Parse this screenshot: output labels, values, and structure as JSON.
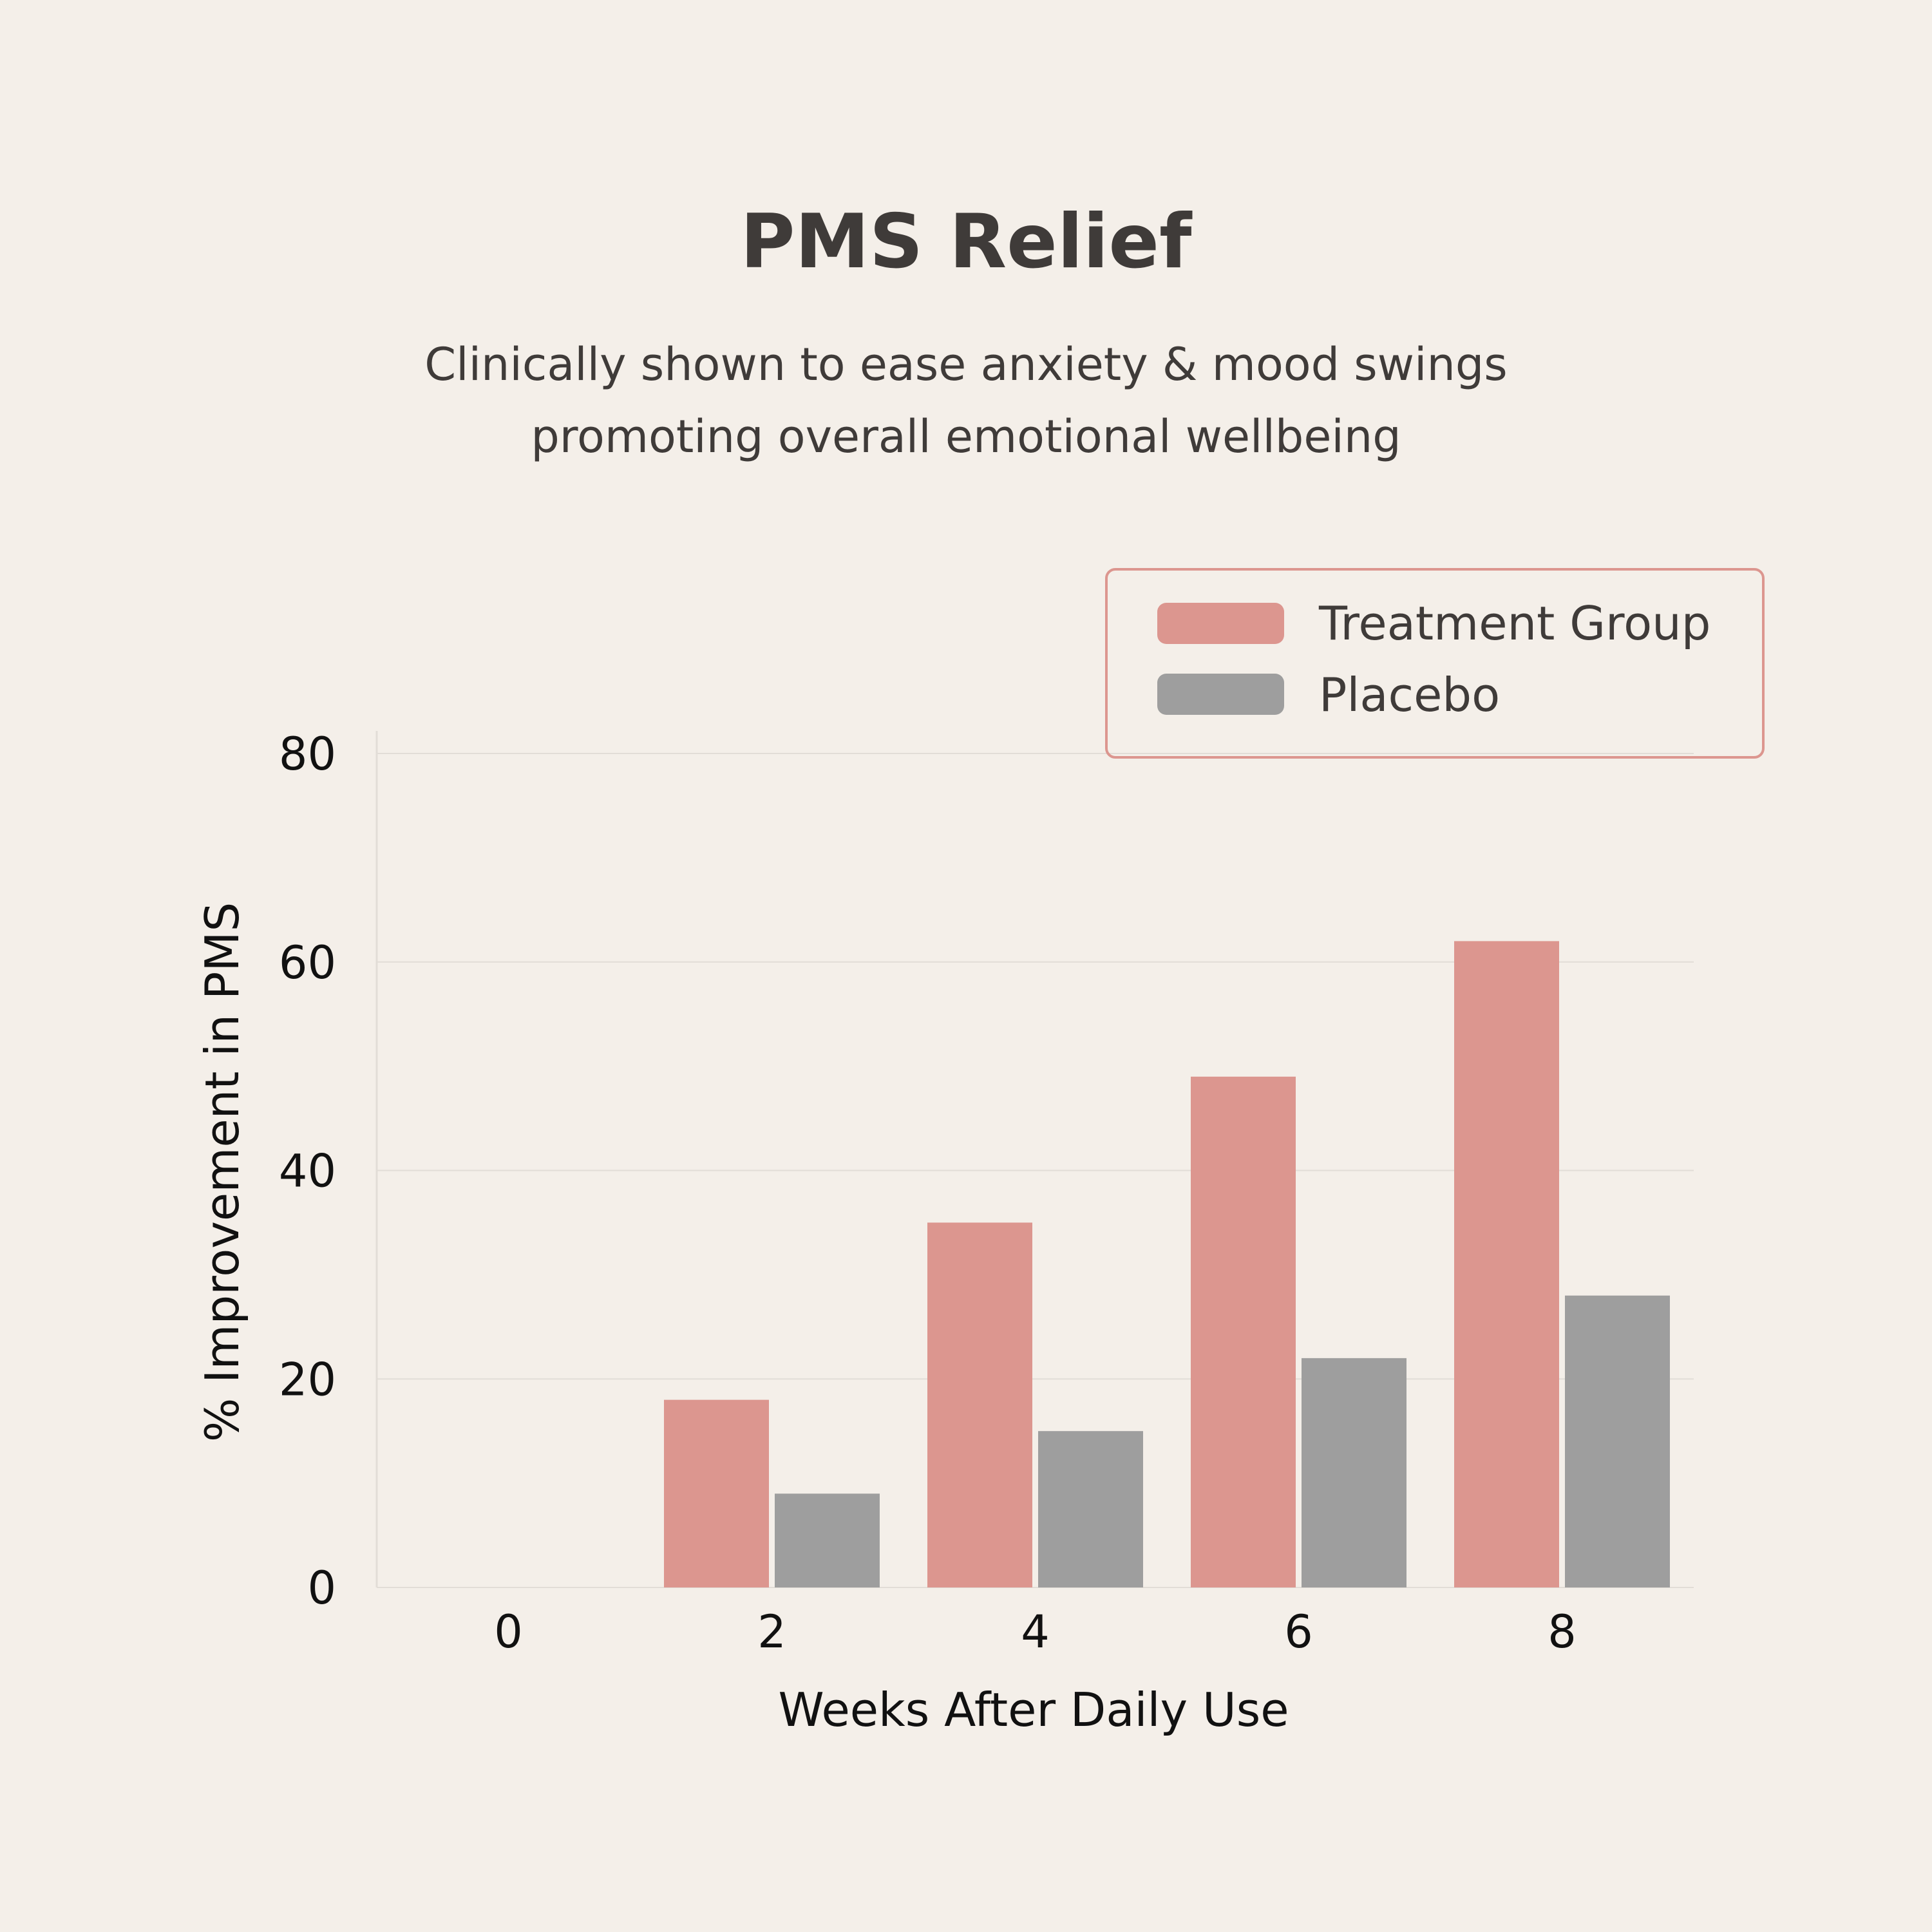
{
  "chart_data": {
    "type": "bar",
    "title": "PMS Relief",
    "subtitle_lines": [
      "Clinically shown to ease anxiety & mood swings",
      "promoting overall emotional wellbeing"
    ],
    "xlabel": "Weeks After Daily Use",
    "ylabel": "% Improvement in PMS",
    "categories": [
      "0",
      "2",
      "4",
      "6",
      "8"
    ],
    "series": [
      {
        "name": "Treatment Group",
        "color": "#dc968f",
        "values": [
          0,
          18,
          35,
          49,
          62
        ]
      },
      {
        "name": "Placebo",
        "color": "#9e9e9e",
        "values": [
          0,
          9,
          15,
          22,
          28
        ]
      }
    ],
    "ylim": [
      0,
      80
    ],
    "yticks": [
      "0",
      "20",
      "40",
      "60",
      "80"
    ],
    "grid": true,
    "legend_position": "top-right",
    "legend_border_color": "#dc968f"
  }
}
